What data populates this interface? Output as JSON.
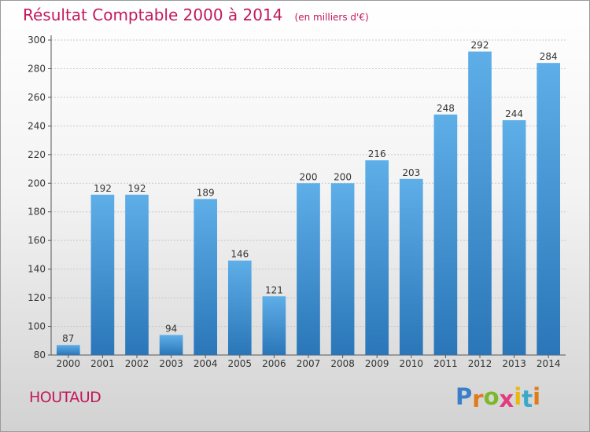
{
  "chart_data": {
    "type": "bar",
    "title": "Résultat Comptable 2000 à 2014",
    "subtitle": "(en milliers d'€)",
    "categories": [
      "2000",
      "2001",
      "2002",
      "2003",
      "2004",
      "2005",
      "2006",
      "2007",
      "2008",
      "2009",
      "2010",
      "2011",
      "2012",
      "2013",
      "2014"
    ],
    "values": [
      87,
      192,
      192,
      94,
      189,
      146,
      121,
      200,
      200,
      216,
      203,
      248,
      292,
      244,
      284
    ],
    "ylim": [
      80,
      300
    ],
    "yticks": [
      80,
      100,
      120,
      140,
      160,
      180,
      200,
      220,
      240,
      260,
      280,
      300
    ],
    "grid": true,
    "bar_color": "#3f8fd4"
  },
  "footer": {
    "commune": "HOUTAUD",
    "brand": "Proxiti",
    "brand_colors": [
      "#3a7fc8",
      "#e07b1a",
      "#7db829",
      "#e03c7e",
      "#e8b80e",
      "#3aa9c8",
      "#e07b1a"
    ]
  }
}
